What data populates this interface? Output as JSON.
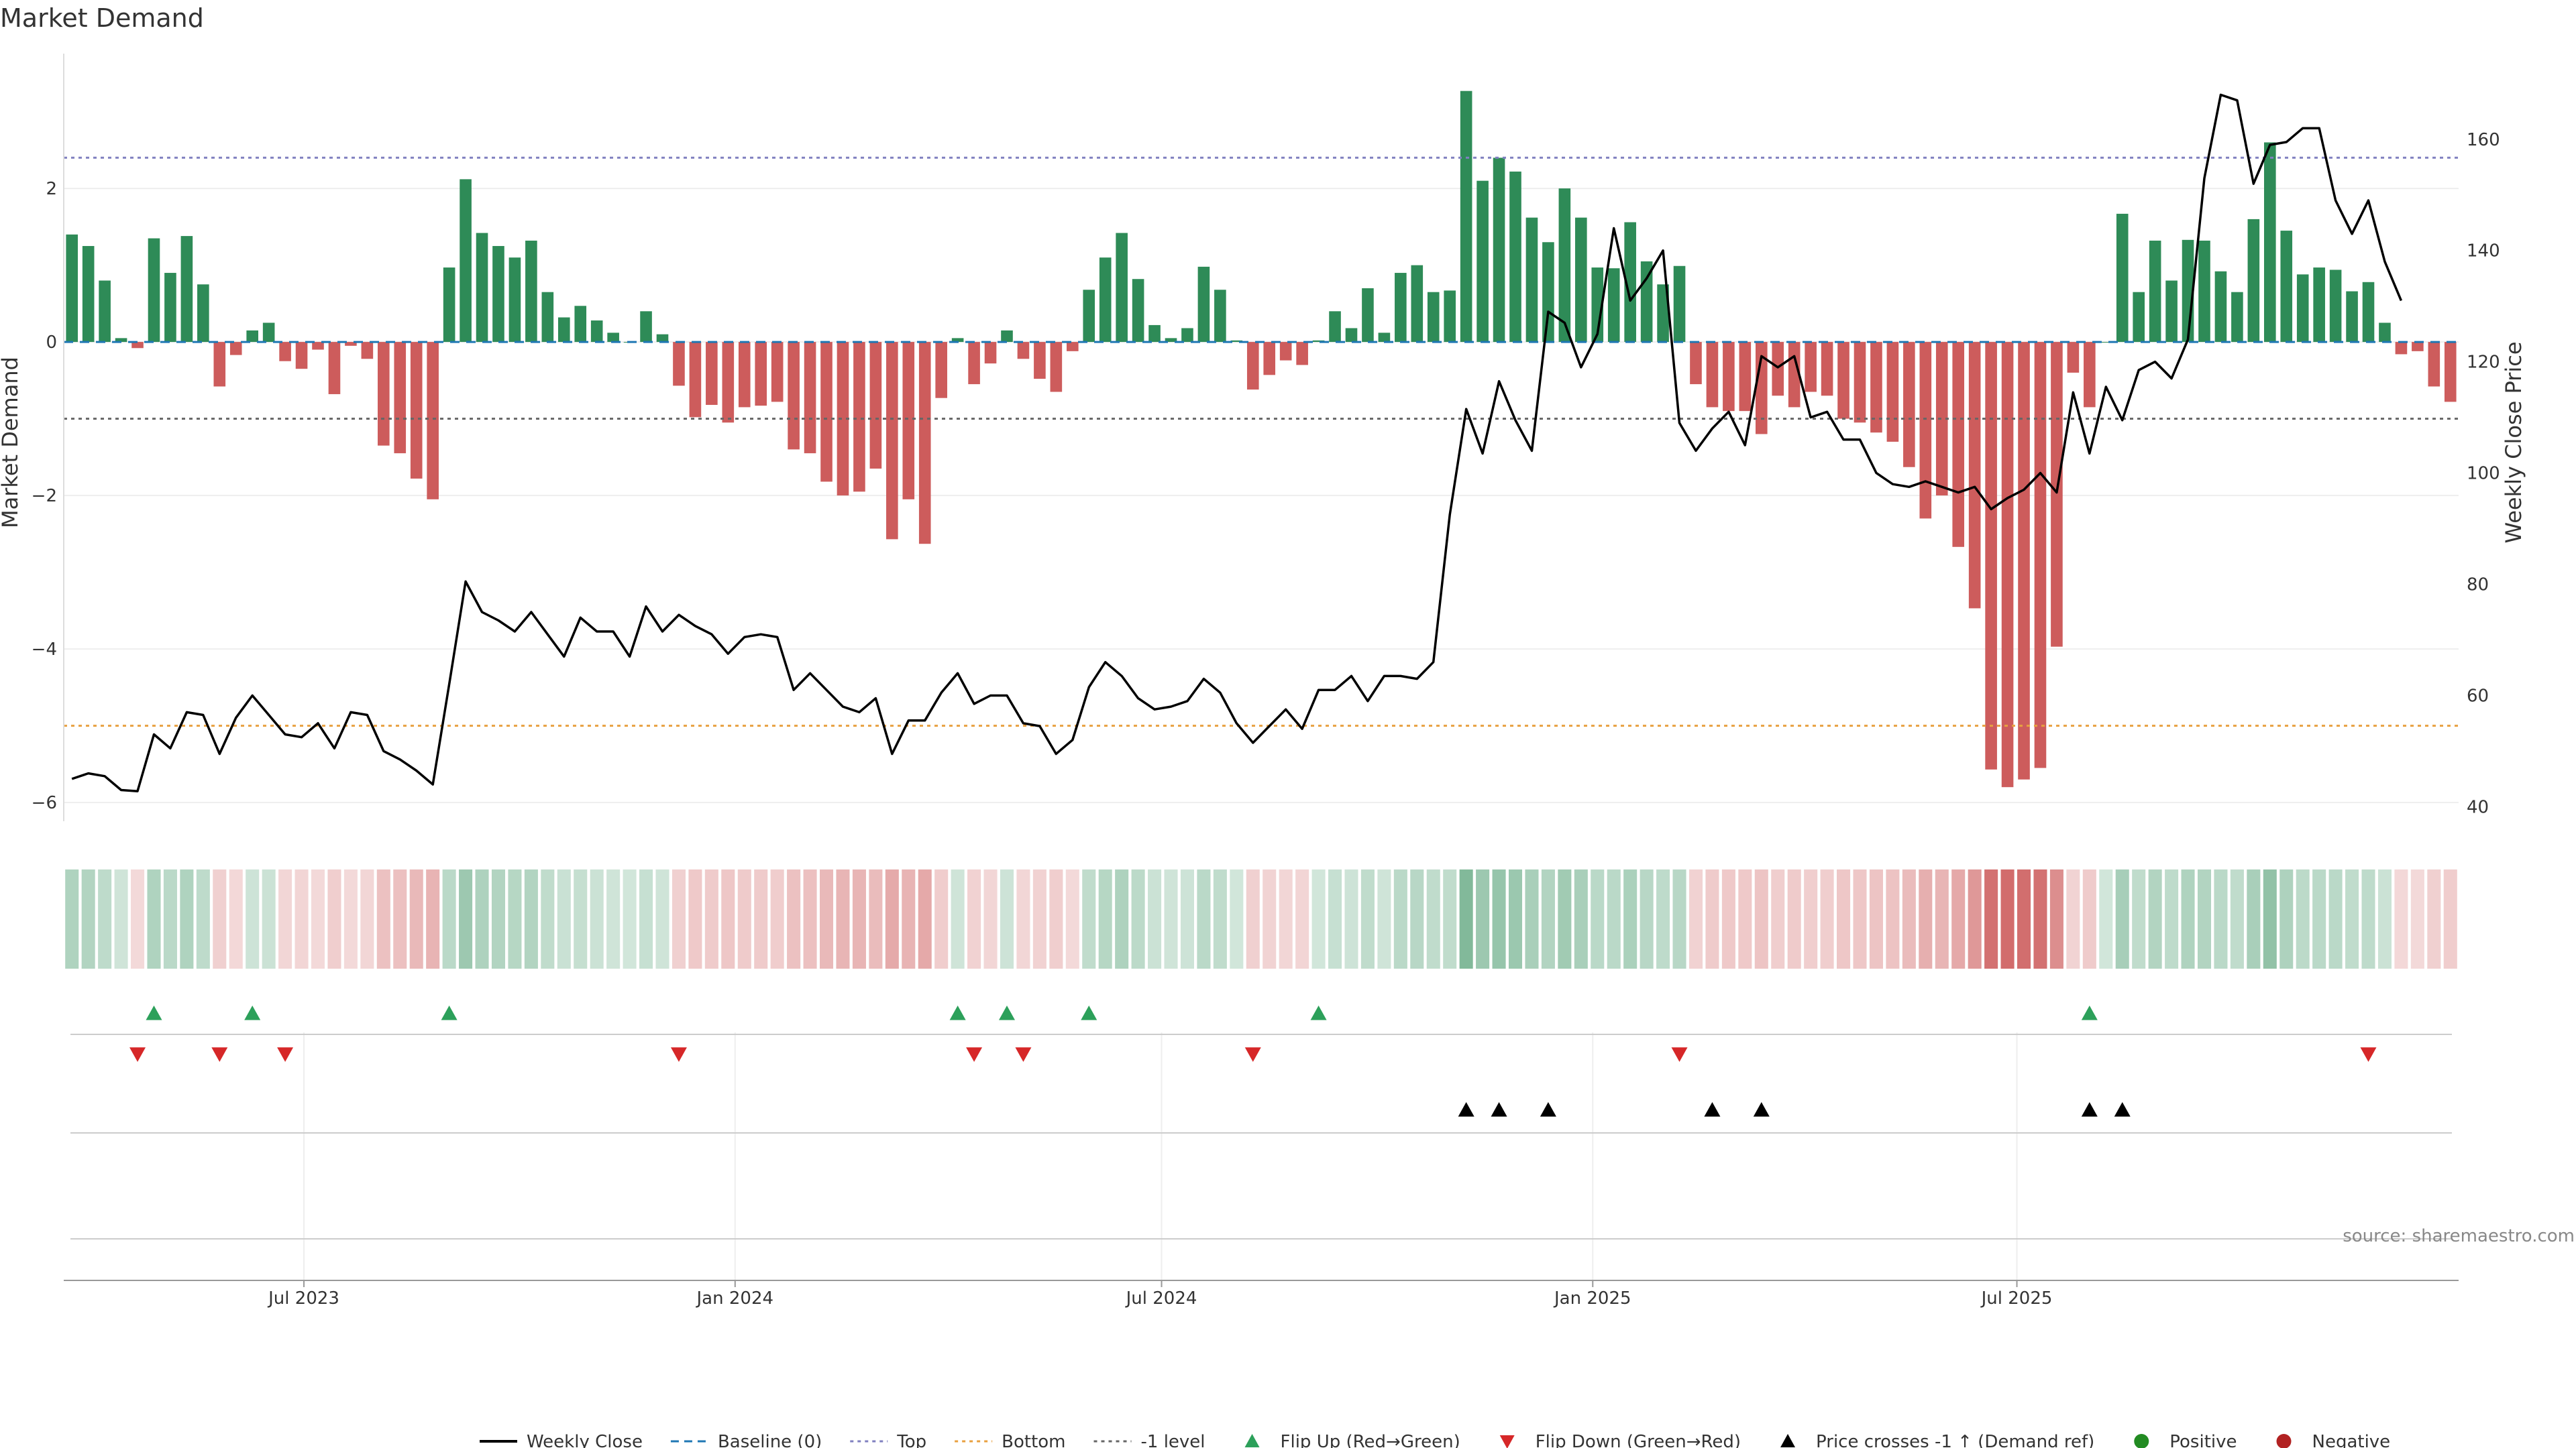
{
  "chart_data": {
    "type": "bar",
    "title": "Market Demand",
    "ylabel_left": "Market Demand",
    "ylabel_right": "Weekly Close Price",
    "ylim_left": [
      -6.2,
      3.8
    ],
    "ylim_right": [
      38,
      176
    ],
    "yticks_left": [
      -6,
      -4,
      -2,
      0,
      2
    ],
    "yticks_right": [
      40,
      60,
      80,
      100,
      120,
      140,
      160
    ],
    "ytick_labels_left": [
      "−6",
      "−4",
      "−2",
      "0",
      "2"
    ],
    "ytick_labels_right": [
      "40",
      "60",
      "80",
      "100",
      "120",
      "140",
      "160"
    ],
    "x_start_date": "2023-03-24",
    "x_interval_days": 7,
    "xticks": [
      {
        "date": "2023-07-01",
        "label": "Jul 2023"
      },
      {
        "date": "2024-01-01",
        "label": "Jan 2024"
      },
      {
        "date": "2024-07-01",
        "label": "Jul 2024"
      },
      {
        "date": "2025-01-01",
        "label": "Jan 2025"
      },
      {
        "date": "2025-07-01",
        "label": "Jul 2025"
      }
    ],
    "reference_lines": [
      {
        "name": "Top",
        "value": 2.4,
        "color": "#8080c0"
      },
      {
        "name": "Bottom",
        "value": -5.0,
        "color": "#e8a040"
      },
      {
        "name": "-1 level",
        "value": -1.0,
        "color": "#666666"
      },
      {
        "name": "Baseline (0)",
        "value": 0,
        "color": "#1f77b4"
      }
    ],
    "series": [
      {
        "name": "Market Demand",
        "values": [
          1.4,
          1.25,
          0.8,
          0.05,
          -0.08,
          1.35,
          0.9,
          1.38,
          0.75,
          -0.58,
          -0.17,
          0.15,
          0.25,
          -0.25,
          -0.35,
          -0.1,
          -0.68,
          -0.05,
          -0.22,
          -1.35,
          -1.45,
          -1.78,
          -2.05,
          0.97,
          2.12,
          1.42,
          1.25,
          1.1,
          1.32,
          0.65,
          0.32,
          0.47,
          0.28,
          0.12,
          0.0,
          0.4,
          0.1,
          -0.57,
          -0.98,
          -0.82,
          -1.05,
          -0.85,
          -0.83,
          -0.78,
          -1.4,
          -1.45,
          -1.82,
          -2.0,
          -1.95,
          -1.65,
          -2.57,
          -2.05,
          -2.63,
          -0.73,
          0.05,
          -0.55,
          -0.28,
          0.15,
          -0.22,
          -0.48,
          -0.65,
          -0.12,
          0.68,
          1.1,
          1.42,
          0.82,
          0.22,
          0.05,
          0.18,
          0.98,
          0.68,
          0.02,
          -0.62,
          -0.43,
          -0.24,
          -0.3,
          0.02,
          0.4,
          0.18,
          0.7,
          0.12,
          0.9,
          1.0,
          0.65,
          0.67,
          3.27,
          2.1,
          2.4,
          2.22,
          1.62,
          1.3,
          2.0,
          1.62,
          0.97,
          0.96,
          1.56,
          1.05,
          0.75,
          0.99,
          -0.55,
          -0.85,
          -0.9,
          -0.9,
          -1.2,
          -0.7,
          -0.85,
          -0.65,
          -0.7,
          -1.0,
          -1.05,
          -1.18,
          -1.3,
          -1.63,
          -2.3,
          -2.0,
          -2.67,
          -3.47,
          -5.57,
          -5.8,
          -5.7,
          -5.55,
          -3.97,
          -0.4,
          -0.85,
          0.0,
          1.67,
          0.65,
          1.32,
          0.8,
          1.33,
          1.32,
          0.92,
          0.65,
          1.6,
          2.6,
          1.45,
          0.88,
          0.97,
          0.94,
          0.66,
          0.78,
          0.25,
          -0.16,
          -0.12,
          -0.58,
          -0.78
        ]
      },
      {
        "name": "Weekly Close",
        "values": [
          45,
          46,
          45.5,
          43,
          42.8,
          53,
          50.5,
          57,
          56.5,
          49.5,
          56,
          60,
          56.5,
          53,
          52.5,
          55,
          50.5,
          57,
          56.5,
          50,
          48.5,
          46.5,
          44,
          62,
          80.5,
          75,
          73.5,
          71.5,
          75,
          71,
          67,
          74,
          71.5,
          71.5,
          67,
          76,
          71.5,
          74.5,
          72.5,
          71,
          67.5,
          70.5,
          71,
          70.5,
          61,
          64,
          61,
          58,
          57,
          59.5,
          49.5,
          55.5,
          55.5,
          60.5,
          64,
          58.5,
          60,
          60,
          55,
          54.5,
          49.5,
          52,
          61.5,
          66,
          63.5,
          59.5,
          57.5,
          58,
          59,
          63,
          60.5,
          55,
          51.5,
          54.5,
          57.5,
          54,
          61,
          61,
          63.5,
          59,
          63.5,
          63.5,
          63,
          66,
          92.5,
          111.5,
          103.5,
          116.5,
          109.5,
          104,
          129,
          127,
          119,
          125,
          144,
          131,
          135,
          140,
          109,
          104,
          108,
          111,
          105,
          121,
          119,
          121,
          110,
          111,
          106,
          106,
          100,
          98,
          97.5,
          98.5,
          97.5,
          96.5,
          97.5,
          93.5,
          95.5,
          97,
          100,
          96.5,
          114.5,
          103.5,
          115.5,
          109.5,
          118.5,
          120,
          117,
          124,
          153,
          168,
          167,
          152,
          159,
          159.5,
          162,
          162,
          149,
          143,
          149,
          138,
          131
        ]
      }
    ],
    "heatmap_strip": {
      "note": "weekly demand shading",
      "values_ref": "Market Demand"
    },
    "flip_up_indices": [
      5,
      11,
      23,
      54,
      57,
      62,
      76,
      123
    ],
    "flip_down_indices": [
      4,
      9,
      13,
      37,
      55,
      58,
      72,
      98,
      140
    ],
    "price_cross_indices": [
      85,
      87,
      90,
      100,
      103,
      123,
      125
    ],
    "legend": {
      "placement": "bottom-center",
      "entries": [
        {
          "label": "Weekly Close",
          "kind": "line",
          "color": "#000000"
        },
        {
          "label": "Baseline (0)",
          "kind": "dash",
          "color": "#1f77b4"
        },
        {
          "label": "Top",
          "kind": "dot",
          "color": "#8080c0"
        },
        {
          "label": "Bottom",
          "kind": "dot",
          "color": "#e8a040"
        },
        {
          "label": "-1 level",
          "kind": "dot",
          "color": "#666666"
        },
        {
          "label": "Flip Up (Red→Green)",
          "kind": "tri-up",
          "color": "#2ca05a"
        },
        {
          "label": "Flip Down (Green→Red)",
          "kind": "tri-down",
          "color": "#d62728"
        },
        {
          "label": "Price crosses -1 ↑ (Demand ref)",
          "kind": "tri-up",
          "color": "#000000"
        },
        {
          "label": "Positive",
          "kind": "circle",
          "color": "#228b22"
        },
        {
          "label": "Negative",
          "kind": "circle",
          "color": "#b22222"
        }
      ]
    },
    "colors": {
      "positive": "#2e8b57",
      "negative": "#cd5c5c",
      "price": "#000000"
    }
  },
  "source_text": "source: sharemaestro.com"
}
